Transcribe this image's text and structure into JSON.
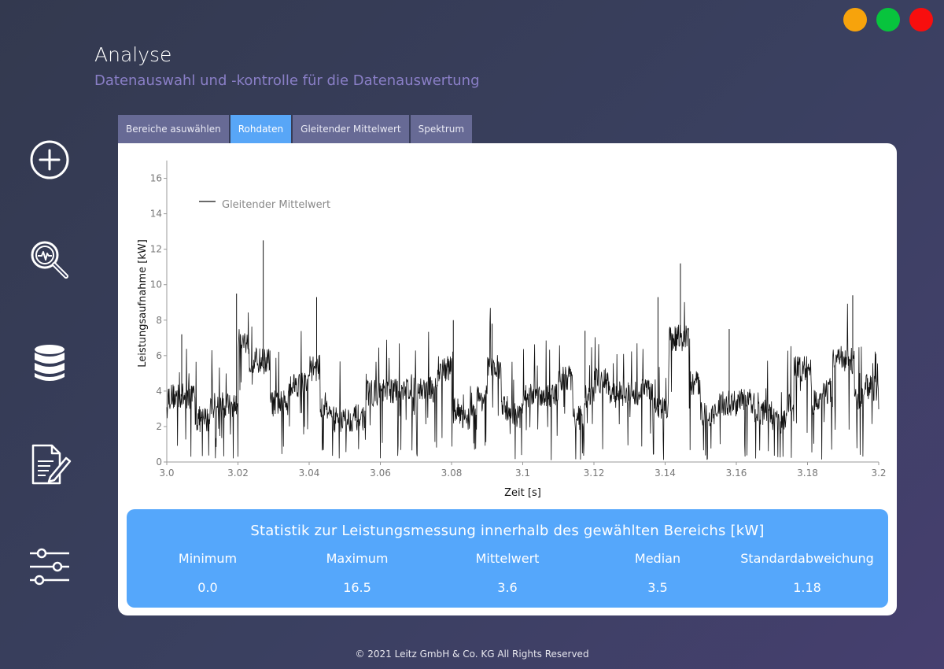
{
  "window_controls": {
    "minimize_color": "#f7a30c",
    "maximize_color": "#08c43d",
    "close_color": "#f80e0e"
  },
  "header": {
    "title": "Analyse",
    "subtitle": "Datenauswahl und -kontrolle für die Datenauswertung"
  },
  "sidebar": {
    "items": [
      {
        "icon": "add-circle-icon"
      },
      {
        "icon": "analysis-magnifier-icon"
      },
      {
        "icon": "database-icon"
      },
      {
        "icon": "report-edit-icon"
      },
      {
        "icon": "settings-sliders-icon"
      }
    ]
  },
  "tabs": [
    {
      "label": "Bereiche asuwählen",
      "active": false
    },
    {
      "label": "Rohdaten",
      "active": true
    },
    {
      "label": "Gleitender Mittelwert",
      "active": false
    },
    {
      "label": "Spektrum",
      "active": false
    }
  ],
  "chart_data": {
    "type": "line",
    "xlabel": "Zeit [s]",
    "ylabel": "Leistungsaufnahme [kW]",
    "xlim": [
      3.0,
      3.2
    ],
    "ylim": [
      0,
      17
    ],
    "x_ticks": [
      "3.0",
      "3.02",
      "3.04",
      "3.06",
      "3.08",
      "3.1",
      "3.12",
      "3.14",
      "3.16",
      "3.18",
      "3.2"
    ],
    "y_ticks": [
      "0",
      "2",
      "4",
      "6",
      "8",
      "10",
      "12",
      "14",
      "16"
    ],
    "legend": {
      "position": "top-left"
    },
    "series": [
      {
        "name": "Gleitender Mittelwert",
        "color": "#111111",
        "segments": [
          {
            "x_start": 3.0,
            "x_end": 3.008,
            "level": 3.7
          },
          {
            "x_start": 3.008,
            "x_end": 3.012,
            "level": 2.4
          },
          {
            "x_start": 3.012,
            "x_end": 3.02,
            "level": 3.2
          },
          {
            "x_start": 3.02,
            "x_end": 3.023,
            "level": 6.8
          },
          {
            "x_start": 3.023,
            "x_end": 3.029,
            "level": 5.7
          },
          {
            "x_start": 3.029,
            "x_end": 3.034,
            "level": 3.3
          },
          {
            "x_start": 3.034,
            "x_end": 3.04,
            "level": 4.4
          },
          {
            "x_start": 3.04,
            "x_end": 3.043,
            "level": 5.3
          },
          {
            "x_start": 3.043,
            "x_end": 3.046,
            "level": 3.2
          },
          {
            "x_start": 3.046,
            "x_end": 3.052,
            "level": 2.4
          },
          {
            "x_start": 3.052,
            "x_end": 3.056,
            "level": 2.5
          },
          {
            "x_start": 3.056,
            "x_end": 3.062,
            "level": 3.9
          },
          {
            "x_start": 3.062,
            "x_end": 3.066,
            "level": 4.0
          },
          {
            "x_start": 3.066,
            "x_end": 3.07,
            "level": 4.2
          },
          {
            "x_start": 3.07,
            "x_end": 3.076,
            "level": 4.1
          },
          {
            "x_start": 3.076,
            "x_end": 3.08,
            "level": 5.3
          },
          {
            "x_start": 3.08,
            "x_end": 3.083,
            "level": 2.9
          },
          {
            "x_start": 3.083,
            "x_end": 3.087,
            "level": 2.5
          },
          {
            "x_start": 3.087,
            "x_end": 3.09,
            "level": 3.6
          },
          {
            "x_start": 3.09,
            "x_end": 3.094,
            "level": 5.3
          },
          {
            "x_start": 3.094,
            "x_end": 3.097,
            "level": 3.0
          },
          {
            "x_start": 3.097,
            "x_end": 3.1,
            "level": 2.6
          },
          {
            "x_start": 3.1,
            "x_end": 3.105,
            "level": 3.7
          },
          {
            "x_start": 3.105,
            "x_end": 3.11,
            "level": 3.8
          },
          {
            "x_start": 3.11,
            "x_end": 3.114,
            "level": 4.7
          },
          {
            "x_start": 3.114,
            "x_end": 3.117,
            "level": 2.5
          },
          {
            "x_start": 3.117,
            "x_end": 3.12,
            "level": 3.6
          },
          {
            "x_start": 3.12,
            "x_end": 3.124,
            "level": 4.6
          },
          {
            "x_start": 3.124,
            "x_end": 3.128,
            "level": 3.8
          },
          {
            "x_start": 3.128,
            "x_end": 3.133,
            "level": 3.9
          },
          {
            "x_start": 3.133,
            "x_end": 3.137,
            "level": 4.1
          },
          {
            "x_start": 3.137,
            "x_end": 3.141,
            "level": 3.1
          },
          {
            "x_start": 3.141,
            "x_end": 3.147,
            "level": 7.0
          },
          {
            "x_start": 3.147,
            "x_end": 3.15,
            "level": 4.4
          },
          {
            "x_start": 3.15,
            "x_end": 3.154,
            "level": 2.7
          },
          {
            "x_start": 3.154,
            "x_end": 3.16,
            "level": 3.3
          },
          {
            "x_start": 3.16,
            "x_end": 3.165,
            "level": 3.4
          },
          {
            "x_start": 3.165,
            "x_end": 3.17,
            "level": 2.8
          },
          {
            "x_start": 3.17,
            "x_end": 3.174,
            "level": 2.3
          },
          {
            "x_start": 3.174,
            "x_end": 3.176,
            "level": 3.2
          },
          {
            "x_start": 3.176,
            "x_end": 3.181,
            "level": 5.3
          },
          {
            "x_start": 3.181,
            "x_end": 3.184,
            "level": 3.4
          },
          {
            "x_start": 3.184,
            "x_end": 3.187,
            "level": 4.0
          },
          {
            "x_start": 3.187,
            "x_end": 3.19,
            "level": 5.8
          },
          {
            "x_start": 3.19,
            "x_end": 3.193,
            "level": 5.7
          },
          {
            "x_start": 3.193,
            "x_end": 3.196,
            "level": 3.4
          },
          {
            "x_start": 3.196,
            "x_end": 3.2,
            "level": 4.2
          }
        ],
        "peaks": [
          {
            "x": 3.0271,
            "y": 12.5
          },
          {
            "x": 3.0196,
            "y": 9.5
          },
          {
            "x": 3.0421,
            "y": 9.3
          },
          {
            "x": 3.1443,
            "y": 11.2
          },
          {
            "x": 3.1927,
            "y": 9.4
          },
          {
            "x": 3.138,
            "y": 9.3
          },
          {
            "x": 3.0042,
            "y": 7.2
          },
          {
            "x": 3.0805,
            "y": 8.0
          },
          {
            "x": 3.0914,
            "y": 7.8
          },
          {
            "x": 3.158,
            "y": 7.5
          },
          {
            "x": 3.1175,
            "y": 7.4
          }
        ]
      }
    ]
  },
  "stats": {
    "title": "Statistik zur Leistungsmessung innerhalb des gewählten Bereichs [kW]",
    "columns": [
      {
        "label": "Minimum",
        "value": "0.0"
      },
      {
        "label": "Maximum",
        "value": "16.5"
      },
      {
        "label": "Mittelwert",
        "value": "3.6"
      },
      {
        "label": "Median",
        "value": "3.5"
      },
      {
        "label": "Standardabweichung",
        "value": "1.18"
      }
    ]
  },
  "footer": {
    "copyright": "© 2021 Leitz GmbH & Co. KG All Rights Reserved"
  }
}
